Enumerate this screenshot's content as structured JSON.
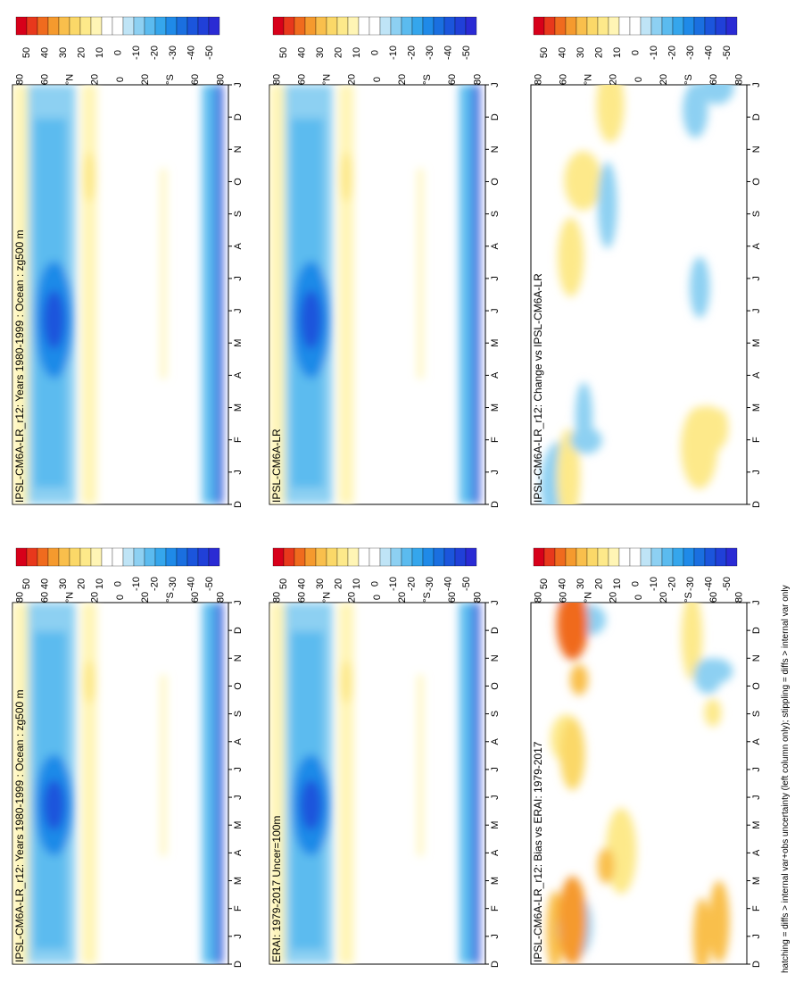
{
  "footnote": "hatching = diffs > internal var+obs uncertainty (left column only); stippling = diffs > internal var only",
  "colorbar": {
    "labels": [
      "50",
      "40",
      "30",
      "20",
      "10",
      "0",
      "-10",
      "-20",
      "-30",
      "-40",
      "-50"
    ],
    "colors": [
      "#d7001a",
      "#e8381c",
      "#f06b1e",
      "#f59a2e",
      "#f9bf4c",
      "#fbd868",
      "#fde98a",
      "#fff5b5",
      "#ffffff",
      "#ffffff",
      "#bfe4f6",
      "#8dd0f2",
      "#5bbbef",
      "#35a6ec",
      "#1f8ae8",
      "#1a6fe0",
      "#1b55dc",
      "#2040d8",
      "#2a2bd4"
    ]
  },
  "chart_data": [
    {
      "type": "heatmap",
      "title": "IPSL-CM6A-LR_r12: Years 1980-1999 : Ocean : zg500 m",
      "x": [
        "D",
        "J",
        "F",
        "M",
        "A",
        "M",
        "J",
        "J",
        "A",
        "S",
        "O",
        "N",
        "D",
        "J"
      ],
      "y": [
        "80",
        "60",
        "°N",
        "20",
        "0",
        "20",
        "°S",
        "60",
        "80"
      ],
      "bands": [
        {
          "lat": 55,
          "season_peak": "May",
          "value": -40
        },
        {
          "lat": 20,
          "value": 10
        },
        {
          "lat": -70,
          "value": -30
        },
        {
          "lat": -80,
          "value": -45
        }
      ]
    },
    {
      "type": "heatmap",
      "title": "IPSL-CM6A-LR_r12: Years 1980-1999 : Ocean : zg500 m",
      "x": [
        "D",
        "J",
        "F",
        "M",
        "A",
        "M",
        "J",
        "J",
        "A",
        "S",
        "O",
        "N",
        "D",
        "J"
      ],
      "y": [
        "80",
        "60",
        "°N",
        "20",
        "0",
        "20",
        "°S",
        "60",
        "80"
      ],
      "bands": [
        {
          "lat": 55,
          "season_peak": "May",
          "value": -40
        },
        {
          "lat": 20,
          "value": 10
        },
        {
          "lat": -70,
          "value": -30
        },
        {
          "lat": -80,
          "value": -45
        }
      ]
    },
    {
      "type": "heatmap",
      "title": "ERAI: 1979-2017 Uncer=100m",
      "x": [
        "D",
        "J",
        "F",
        "M",
        "A",
        "M",
        "J",
        "J",
        "A",
        "S",
        "O",
        "N",
        "D",
        "J"
      ],
      "y": [
        "80",
        "60",
        "°N",
        "20",
        "0",
        "20",
        "°S",
        "60",
        "80"
      ],
      "bands": [
        {
          "lat": 55,
          "season_peak": "May",
          "value": -40
        },
        {
          "lat": 20,
          "value": 10
        },
        {
          "lat": -75,
          "value": -35
        }
      ]
    },
    {
      "type": "heatmap",
      "title": "IPSL-CM6A-LR",
      "x": [
        "D",
        "J",
        "F",
        "M",
        "A",
        "M",
        "J",
        "J",
        "A",
        "S",
        "O",
        "N",
        "D",
        "J"
      ],
      "y": [
        "80",
        "60",
        "°N",
        "20",
        "0",
        "20",
        "°S",
        "60",
        "80"
      ],
      "bands": [
        {
          "lat": 55,
          "season_peak": "May",
          "value": -40
        },
        {
          "lat": 20,
          "value": 10
        },
        {
          "lat": -75,
          "value": -35
        }
      ]
    },
    {
      "type": "heatmap",
      "title": "IPSL-CM6A-LR_r12: Bias vs ERAI: 1979-2017",
      "x": [
        "D",
        "J",
        "F",
        "M",
        "A",
        "M",
        "J",
        "J",
        "A",
        "S",
        "O",
        "N",
        "D",
        "J"
      ],
      "y": [
        "80",
        "60",
        "°N",
        "20",
        "0",
        "20",
        "°S",
        "60",
        "80"
      ],
      "bands": [
        {
          "lat": 50,
          "month": "J",
          "value": 30
        },
        {
          "lat": 55,
          "month": "A",
          "value": 20
        },
        {
          "lat": -65,
          "value": -15
        }
      ]
    },
    {
      "type": "heatmap",
      "title": "IPSL-CM6A-LR_r12: Change vs IPSL-CM6A-LR",
      "x": [
        "D",
        "J",
        "F",
        "M",
        "A",
        "M",
        "J",
        "J",
        "A",
        "S",
        "O",
        "N",
        "D",
        "J"
      ],
      "y": [
        "80",
        "60",
        "°N",
        "20",
        "0",
        "20",
        "°S",
        "60",
        "80"
      ],
      "bands": [
        {
          "lat": 60,
          "month": "D",
          "value": 15
        },
        {
          "lat": 45,
          "value": -10
        },
        {
          "lat": -60,
          "value": -10
        }
      ]
    }
  ]
}
